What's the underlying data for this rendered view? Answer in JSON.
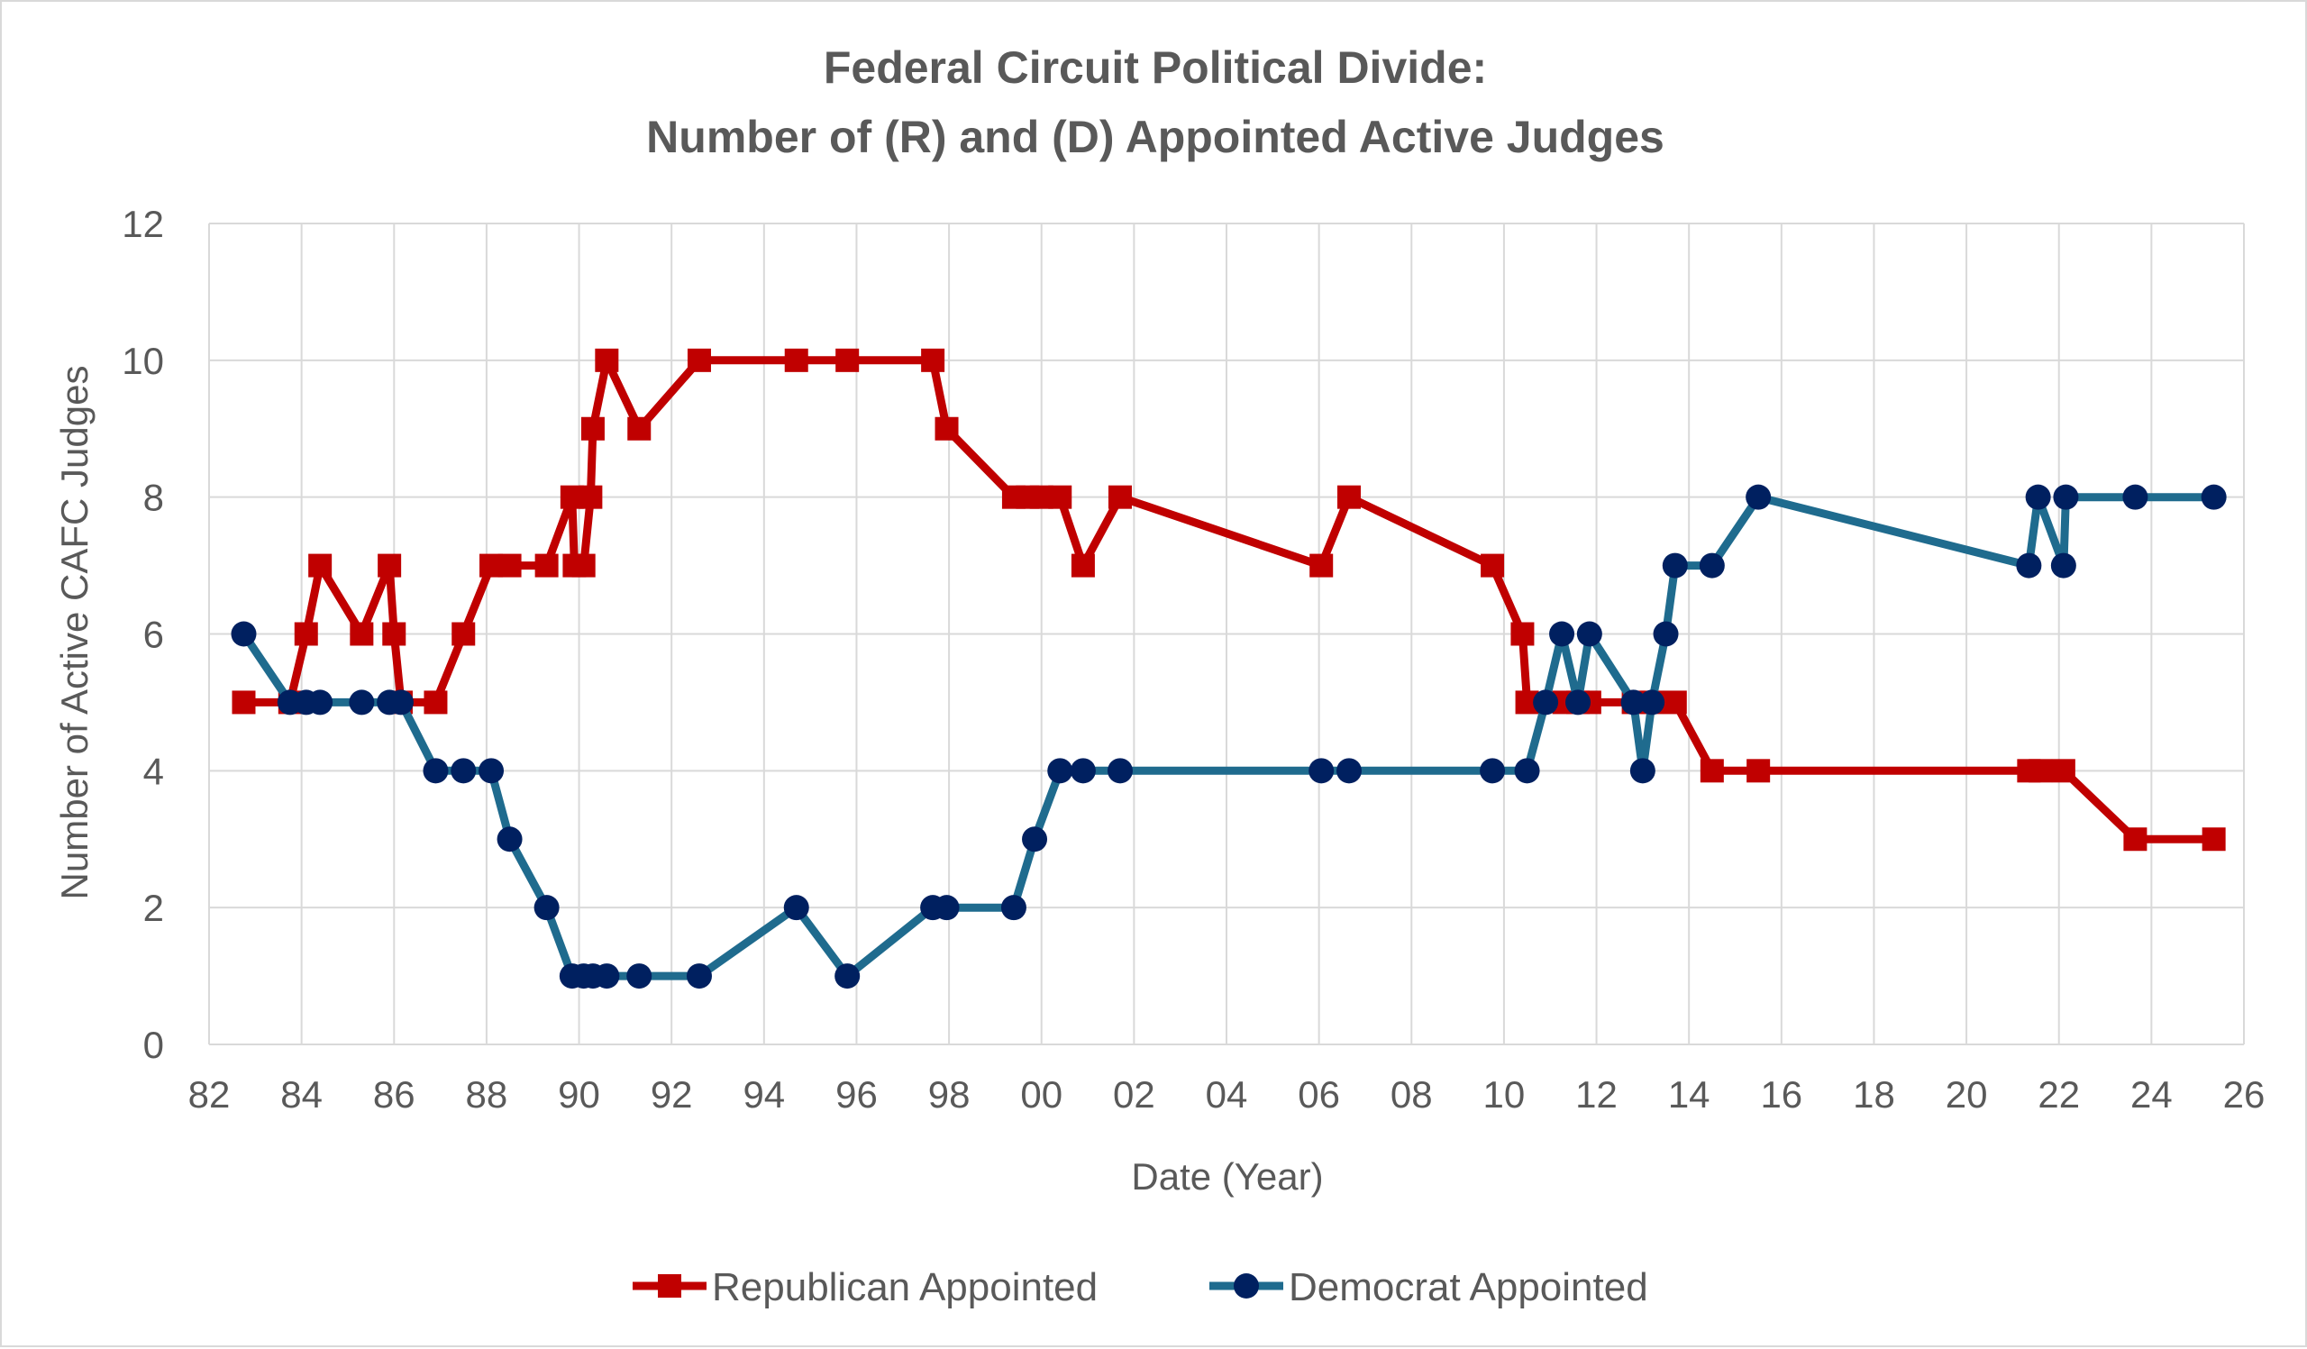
{
  "chart_data": {
    "type": "line",
    "title": "Federal Circuit Political Divide:",
    "subtitle": "Number of (R) and (D) Appointed Active Judges",
    "xlabel": "Date (Year)",
    "ylabel": "Number of Active CAFC Judges",
    "xlim": [
      1982,
      2026
    ],
    "ylim": [
      0,
      12
    ],
    "x_ticks": [
      1982,
      1984,
      1986,
      1988,
      1990,
      1992,
      1994,
      1996,
      1998,
      2000,
      2002,
      2004,
      2006,
      2008,
      2010,
      2012,
      2014,
      2016,
      2018,
      2020,
      2022,
      2024,
      2026
    ],
    "x_tick_labels": [
      "82",
      "84",
      "86",
      "88",
      "90",
      "92",
      "94",
      "96",
      "98",
      "00",
      "02",
      "04",
      "06",
      "08",
      "10",
      "12",
      "14",
      "16",
      "18",
      "20",
      "22",
      "24",
      "26"
    ],
    "y_ticks": [
      0,
      2,
      4,
      6,
      8,
      10,
      12
    ],
    "y_tick_labels": [
      "0",
      "2",
      "4",
      "6",
      "8",
      "10",
      "12"
    ],
    "grid": true,
    "legend_position": "bottom",
    "series": [
      {
        "name": "Republican Appointed",
        "color": "#c00000",
        "marker": "square",
        "points": [
          [
            1982.75,
            5
          ],
          [
            1983.75,
            5
          ],
          [
            1984.1,
            6
          ],
          [
            1984.4,
            7
          ],
          [
            1985.3,
            6
          ],
          [
            1985.9,
            7
          ],
          [
            1986.0,
            6
          ],
          [
            1986.15,
            5
          ],
          [
            1986.9,
            5
          ],
          [
            1987.5,
            6
          ],
          [
            1988.1,
            7
          ],
          [
            1988.5,
            7
          ],
          [
            1989.3,
            7
          ],
          [
            1989.85,
            8
          ],
          [
            1989.9,
            7
          ],
          [
            1990.1,
            7
          ],
          [
            1990.25,
            8
          ],
          [
            1990.3,
            9
          ],
          [
            1990.6,
            10
          ],
          [
            1991.3,
            9
          ],
          [
            1992.6,
            10
          ],
          [
            1994.7,
            10
          ],
          [
            1995.8,
            10
          ],
          [
            1997.65,
            10
          ],
          [
            1997.95,
            9
          ],
          [
            1999.4,
            8
          ],
          [
            1999.7,
            8
          ],
          [
            2000.0,
            8
          ],
          [
            2000.4,
            8
          ],
          [
            2000.9,
            7
          ],
          [
            2001.7,
            8
          ],
          [
            2006.05,
            7
          ],
          [
            2006.65,
            8
          ],
          [
            2009.75,
            7
          ],
          [
            2010.4,
            6
          ],
          [
            2010.5,
            5
          ],
          [
            2011.3,
            5
          ],
          [
            2011.6,
            5
          ],
          [
            2011.85,
            5
          ],
          [
            2012.8,
            5
          ],
          [
            2013.2,
            5
          ],
          [
            2013.7,
            5
          ],
          [
            2014.5,
            4
          ],
          [
            2015.5,
            4
          ],
          [
            2021.35,
            4
          ],
          [
            2021.6,
            4
          ],
          [
            2022.1,
            4
          ],
          [
            2023.65,
            3
          ],
          [
            2025.35,
            3
          ]
        ]
      },
      {
        "name": "Democrat Appointed",
        "color": "#1f6b8e",
        "marker": "circle",
        "markerColor": "#002060",
        "points": [
          [
            1982.75,
            6
          ],
          [
            1983.75,
            5
          ],
          [
            1984.1,
            5
          ],
          [
            1984.4,
            5
          ],
          [
            1985.3,
            5
          ],
          [
            1985.9,
            5
          ],
          [
            1986.15,
            5
          ],
          [
            1986.9,
            4
          ],
          [
            1987.5,
            4
          ],
          [
            1988.1,
            4
          ],
          [
            1988.5,
            3
          ],
          [
            1989.3,
            2
          ],
          [
            1989.85,
            1
          ],
          [
            1990.1,
            1
          ],
          [
            1990.3,
            1
          ],
          [
            1990.6,
            1
          ],
          [
            1991.3,
            1
          ],
          [
            1992.6,
            1
          ],
          [
            1994.7,
            2
          ],
          [
            1995.8,
            1
          ],
          [
            1997.65,
            2
          ],
          [
            1997.95,
            2
          ],
          [
            1999.4,
            2
          ],
          [
            1999.85,
            3
          ],
          [
            2000.4,
            4
          ],
          [
            2000.9,
            4
          ],
          [
            2001.7,
            4
          ],
          [
            2006.05,
            4
          ],
          [
            2006.65,
            4
          ],
          [
            2009.75,
            4
          ],
          [
            2010.5,
            4
          ],
          [
            2010.9,
            5
          ],
          [
            2011.25,
            6
          ],
          [
            2011.6,
            5
          ],
          [
            2011.85,
            6
          ],
          [
            2012.8,
            5
          ],
          [
            2013.0,
            4
          ],
          [
            2013.2,
            5
          ],
          [
            2013.5,
            6
          ],
          [
            2013.7,
            7
          ],
          [
            2014.5,
            7
          ],
          [
            2015.5,
            8
          ],
          [
            2021.35,
            7
          ],
          [
            2021.55,
            8
          ],
          [
            2022.1,
            7
          ],
          [
            2022.15,
            8
          ],
          [
            2023.65,
            8
          ],
          [
            2025.35,
            8
          ]
        ]
      }
    ]
  }
}
